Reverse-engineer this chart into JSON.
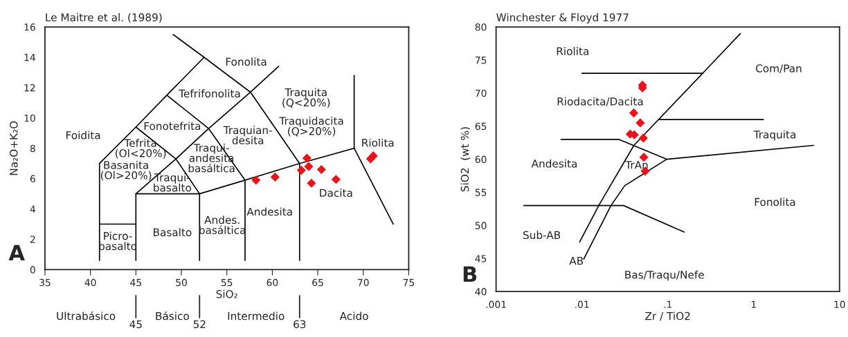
{
  "chart_data": [
    {
      "type": "scatter",
      "title": "Le Maitre et al. (1989)",
      "xlabel": "SiO₂",
      "ylabel": "Na₂O+K₂O",
      "xlim": [
        35,
        75
      ],
      "ylim": [
        0,
        16
      ],
      "xticks": [
        35,
        40,
        45,
        50,
        55,
        60,
        65,
        70,
        75
      ],
      "yticks": [
        0,
        2,
        4,
        6,
        8,
        10,
        12,
        14,
        16
      ],
      "x2lim": [
        35,
        75
      ],
      "x2ticks": [
        45,
        52,
        63
      ],
      "grid": false,
      "series": [
        {
          "type": "line",
          "color": "#000000",
          "marker": "none",
          "x": [
            41,
            41,
            45,
            48.4,
            52.5
          ],
          "values": [
            0.6,
            7,
            9.4,
            11.5,
            14
          ]
        },
        {
          "type": "line",
          "color": "#000000",
          "marker": "none",
          "x": [
            49.1,
            52.5,
            57.6,
            60.7
          ],
          "values": [
            15.5,
            14,
            11.7,
            13.4
          ]
        },
        {
          "type": "line",
          "color": "#000000",
          "marker": "none",
          "x": [
            45,
            45,
            52,
            52
          ],
          "values": [
            0.6,
            5,
            5,
            0.6
          ]
        },
        {
          "type": "line",
          "color": "#000000",
          "marker": "none",
          "x": [
            41,
            45
          ],
          "values": [
            3,
            3
          ]
        },
        {
          "type": "line",
          "color": "#000000",
          "marker": "none",
          "x": [
            45,
            49.4,
            52
          ],
          "values": [
            5,
            7.3,
            5
          ]
        },
        {
          "type": "line",
          "color": "#000000",
          "marker": "none",
          "x": [
            45,
            49.4,
            53,
            57.6,
            63
          ],
          "values": [
            9.4,
            7.3,
            9.3,
            11.7,
            7
          ]
        },
        {
          "type": "line",
          "color": "#000000",
          "marker": "none",
          "x": [
            48.4,
            53,
            57
          ],
          "values": [
            11.5,
            9.3,
            5.9
          ]
        },
        {
          "type": "line",
          "color": "#000000",
          "marker": "none",
          "x": [
            52,
            57,
            63,
            69
          ],
          "values": [
            5,
            5.9,
            7,
            8
          ]
        },
        {
          "type": "line",
          "color": "#000000",
          "marker": "none",
          "x": [
            57,
            57
          ],
          "values": [
            5.9,
            0.6
          ]
        },
        {
          "type": "line",
          "color": "#000000",
          "marker": "none",
          "x": [
            63,
            63
          ],
          "values": [
            7,
            0.6
          ]
        },
        {
          "type": "line",
          "color": "#000000",
          "marker": "none",
          "x": [
            69,
            69
          ],
          "values": [
            12.8,
            8
          ]
        },
        {
          "type": "line",
          "color": "#000000",
          "marker": "none",
          "x": [
            69,
            73.3
          ],
          "values": [
            8,
            3
          ]
        },
        {
          "color": "#e8141b",
          "marker": "diamond",
          "x": [
            58.2,
            60.3,
            63.8,
            63.2,
            64.0,
            64.3,
            65.4,
            67.0,
            70.8,
            71.1
          ],
          "values": [
            5.9,
            6.1,
            7.35,
            6.55,
            6.8,
            5.7,
            6.6,
            5.95,
            7.3,
            7.5
          ]
        }
      ],
      "annotations": [
        "A",
        "Fonolita",
        "Tefrifonolita",
        "Traquita\n(Q<20%)",
        "Traquidacita\n(Q>20%)",
        "Fonotefrita",
        "Traquian-\ndesita",
        "Foidita",
        "Tefrita\n(Ol<20%)",
        "Riolita",
        "Traqui-\nandesita\nbasáltica",
        "Basanita\n(Ol>20%)",
        "Traqui-\nbasalto",
        "Dacita",
        "Andesita",
        "Andes.\nbasáltica",
        "Basalto",
        "Picro-\nbasalto",
        "Ultrabásico",
        "Básico",
        "Intermedio",
        "Acido"
      ]
    },
    {
      "type": "scatter",
      "title": "Winchester & Floyd 1977",
      "xlabel": "Zr / TiO2",
      "ylabel": "SiO2  (wt %)",
      "log": "x",
      "xlim": [
        0.001,
        10
      ],
      "ylim": [
        40,
        80
      ],
      "xticks": [
        {
          "value": 0.001,
          "label": ".001"
        },
        {
          "value": 0.01,
          "label": ".01"
        },
        {
          "value": 0.1,
          "label": ".1"
        },
        1,
        10
      ],
      "yticks": [
        40,
        45,
        50,
        55,
        60,
        65,
        70,
        75,
        80
      ],
      "grid": false,
      "series": [
        {
          "type": "line",
          "color": "#000000",
          "marker": "none",
          "x": [
            0.01,
            0.255
          ],
          "values": [
            73,
            73
          ]
        },
        {
          "type": "line",
          "color": "#000000",
          "marker": "none",
          "x": [
            0.0094,
            0.0157,
            0.0403,
            0.255,
            0.7
          ],
          "values": [
            47.5,
            53,
            62.1,
            73,
            79
          ]
        },
        {
          "type": "line",
          "color": "#000000",
          "marker": "none",
          "x": [
            0.079,
            1.3
          ],
          "values": [
            66,
            66
          ]
        },
        {
          "type": "line",
          "color": "#000000",
          "marker": "none",
          "x": [
            0.0057,
            0.0268,
            0.097,
            5.0
          ],
          "values": [
            63,
            63,
            60,
            62.1
          ]
        },
        {
          "type": "line",
          "color": "#000000",
          "marker": "none",
          "x": [
            0.097,
            0.0315,
            0.0218,
            0.0105
          ],
          "values": [
            60,
            56,
            53,
            44.9
          ]
        },
        {
          "type": "line",
          "color": "#000000",
          "marker": "none",
          "x": [
            0.0021,
            0.0305,
            0.155
          ],
          "values": [
            53,
            53,
            49
          ]
        },
        {
          "color": "#e8141b",
          "marker": "diamond",
          "x": [
            0.0507,
            0.0507,
            0.0401,
            0.0478,
            0.0365,
            0.0407,
            0.0519,
            0.0526,
            0.0545
          ],
          "values": [
            71.2,
            70.8,
            67.0,
            65.5,
            63.8,
            63.7,
            63.2,
            60.3,
            58.2
          ]
        }
      ],
      "annotations": [
        "B",
        "Riolita",
        "Com/Pan",
        "Riodacita/Dacita",
        "Traquita",
        "Andesita",
        "TrAn",
        "Fonolita",
        "Sub-AB",
        "AB",
        "Bas/Traqu/Nefe"
      ]
    }
  ]
}
